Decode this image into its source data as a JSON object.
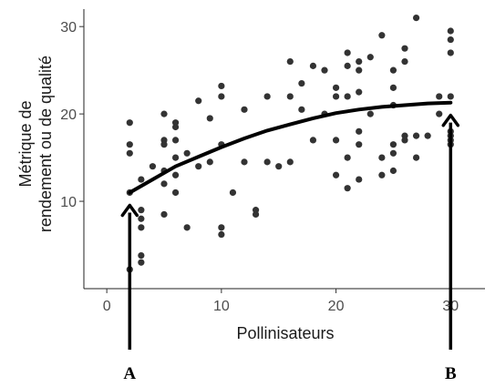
{
  "chart_data": {
    "type": "scatter",
    "xlabel": "Pollinisateurs",
    "ylabel": [
      "Métrique de",
      "rendement ou de qualité"
    ],
    "xlim": [
      -2,
      33
    ],
    "ylim": [
      0,
      32
    ],
    "x_ticks": [
      0,
      10,
      20,
      30
    ],
    "y_ticks": [
      10,
      20,
      30
    ],
    "grid": false,
    "colors": {
      "points": "#333333",
      "curve": "#000000",
      "arrows": "#000000"
    },
    "points": [
      {
        "x": 2,
        "y": 2.2
      },
      {
        "x": 2,
        "y": 11
      },
      {
        "x": 2,
        "y": 15.5
      },
      {
        "x": 2,
        "y": 16.5
      },
      {
        "x": 2,
        "y": 19
      },
      {
        "x": 3,
        "y": 3
      },
      {
        "x": 3,
        "y": 3.8
      },
      {
        "x": 3,
        "y": 7
      },
      {
        "x": 3,
        "y": 8
      },
      {
        "x": 3,
        "y": 9
      },
      {
        "x": 3,
        "y": 12.5
      },
      {
        "x": 4,
        "y": 14
      },
      {
        "x": 5,
        "y": 8.5
      },
      {
        "x": 5,
        "y": 12
      },
      {
        "x": 5,
        "y": 13.5
      },
      {
        "x": 5,
        "y": 16.5
      },
      {
        "x": 5,
        "y": 17
      },
      {
        "x": 5,
        "y": 20
      },
      {
        "x": 6,
        "y": 11
      },
      {
        "x": 6,
        "y": 13
      },
      {
        "x": 6,
        "y": 15
      },
      {
        "x": 6,
        "y": 17
      },
      {
        "x": 6,
        "y": 18.5
      },
      {
        "x": 6,
        "y": 19
      },
      {
        "x": 7,
        "y": 7
      },
      {
        "x": 7,
        "y": 15.5
      },
      {
        "x": 8,
        "y": 14
      },
      {
        "x": 8,
        "y": 21.5
      },
      {
        "x": 9,
        "y": 14.5
      },
      {
        "x": 9,
        "y": 19.5
      },
      {
        "x": 10,
        "y": 6.2
      },
      {
        "x": 10,
        "y": 7
      },
      {
        "x": 10,
        "y": 16.5
      },
      {
        "x": 10,
        "y": 22
      },
      {
        "x": 10,
        "y": 23.2
      },
      {
        "x": 11,
        "y": 11
      },
      {
        "x": 12,
        "y": 14.5
      },
      {
        "x": 12,
        "y": 20.5
      },
      {
        "x": 13,
        "y": 8.5
      },
      {
        "x": 13,
        "y": 9
      },
      {
        "x": 14,
        "y": 14.5
      },
      {
        "x": 14,
        "y": 22
      },
      {
        "x": 15,
        "y": 14
      },
      {
        "x": 16,
        "y": 14.5
      },
      {
        "x": 16,
        "y": 22
      },
      {
        "x": 16,
        "y": 26
      },
      {
        "x": 17,
        "y": 20.5
      },
      {
        "x": 17,
        "y": 23.5
      },
      {
        "x": 18,
        "y": 17
      },
      {
        "x": 18,
        "y": 25.5
      },
      {
        "x": 19,
        "y": 20
      },
      {
        "x": 19,
        "y": 25
      },
      {
        "x": 20,
        "y": 13
      },
      {
        "x": 20,
        "y": 17
      },
      {
        "x": 20,
        "y": 22
      },
      {
        "x": 20,
        "y": 23
      },
      {
        "x": 21,
        "y": 11.5
      },
      {
        "x": 21,
        "y": 15
      },
      {
        "x": 21,
        "y": 22
      },
      {
        "x": 21,
        "y": 25.5
      },
      {
        "x": 21,
        "y": 27
      },
      {
        "x": 22,
        "y": 12.5
      },
      {
        "x": 22,
        "y": 16.5
      },
      {
        "x": 22,
        "y": 18
      },
      {
        "x": 22,
        "y": 22.5
      },
      {
        "x": 22,
        "y": 25
      },
      {
        "x": 22,
        "y": 26
      },
      {
        "x": 23,
        "y": 20
      },
      {
        "x": 23,
        "y": 26.5
      },
      {
        "x": 24,
        "y": 13
      },
      {
        "x": 24,
        "y": 15
      },
      {
        "x": 24,
        "y": 29
      },
      {
        "x": 25,
        "y": 13.5
      },
      {
        "x": 25,
        "y": 15.5
      },
      {
        "x": 25,
        "y": 16.5
      },
      {
        "x": 25,
        "y": 21
      },
      {
        "x": 25,
        "y": 23
      },
      {
        "x": 25,
        "y": 25
      },
      {
        "x": 26,
        "y": 17
      },
      {
        "x": 26,
        "y": 17.5
      },
      {
        "x": 26,
        "y": 26
      },
      {
        "x": 26,
        "y": 27.5
      },
      {
        "x": 27,
        "y": 15
      },
      {
        "x": 27,
        "y": 17.5
      },
      {
        "x": 27,
        "y": 31
      },
      {
        "x": 28,
        "y": 17.5
      },
      {
        "x": 29,
        "y": 20
      },
      {
        "x": 29,
        "y": 22
      },
      {
        "x": 30,
        "y": 16.5
      },
      {
        "x": 30,
        "y": 17
      },
      {
        "x": 30,
        "y": 17.5
      },
      {
        "x": 30,
        "y": 18
      },
      {
        "x": 30,
        "y": 22
      },
      {
        "x": 30,
        "y": 27
      },
      {
        "x": 30,
        "y": 28.5
      },
      {
        "x": 30,
        "y": 29.5
      }
    ],
    "fit_curve": [
      {
        "x": 2,
        "y": 11
      },
      {
        "x": 4,
        "y": 12.5
      },
      {
        "x": 6,
        "y": 14
      },
      {
        "x": 8,
        "y": 15.1
      },
      {
        "x": 10,
        "y": 16.2
      },
      {
        "x": 12,
        "y": 17.2
      },
      {
        "x": 14,
        "y": 18.1
      },
      {
        "x": 16,
        "y": 18.8
      },
      {
        "x": 18,
        "y": 19.5
      },
      {
        "x": 20,
        "y": 20.1
      },
      {
        "x": 22,
        "y": 20.5
      },
      {
        "x": 24,
        "y": 20.8
      },
      {
        "x": 26,
        "y": 21
      },
      {
        "x": 28,
        "y": 21.2
      },
      {
        "x": 30,
        "y": 21.3
      }
    ],
    "annotations": [
      {
        "label": "A",
        "x": 2
      },
      {
        "label": "B",
        "x": 30
      }
    ]
  }
}
